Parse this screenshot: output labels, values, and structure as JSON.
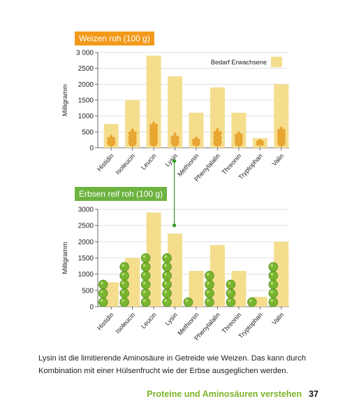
{
  "chart_data": [
    {
      "type": "bar",
      "title": "Weizen roh (100 g)",
      "ylabel": "Milligramm",
      "ylim": [
        0,
        3000
      ],
      "yticks": [
        "0",
        "500",
        "1000",
        "1500",
        "2000",
        "2500",
        "3 000"
      ],
      "categories": [
        "Histidin",
        "Isoleucin",
        "Leucin",
        "Lysin",
        "Methionin",
        "Phenylalalin",
        "Threonin",
        "Tryptophan",
        "Valin"
      ],
      "series": [
        {
          "name": "Bedarf Erwachsene",
          "values": [
            750,
            1500,
            2900,
            2250,
            1100,
            1900,
            1100,
            300,
            2000
          ]
        },
        {
          "values": [
            300,
            500,
            720,
            370,
            240,
            520,
            410,
            140,
            560
          ]
        }
      ],
      "legend": "top-right",
      "grid": true
    },
    {
      "type": "bar",
      "title": "Erbsen reif roh (100 g)",
      "ylabel": "Milligramm",
      "ylim": [
        0,
        3000
      ],
      "yticks": [
        "0",
        "500",
        "1000",
        "1500",
        "2000",
        "2500",
        "3000"
      ],
      "categories": [
        "Histidin",
        "Isoleucin",
        "Leucin",
        "Lysin",
        "Methionin",
        "Phenylalalin",
        "Threonin",
        "Tryptophan",
        "Valin"
      ],
      "series": [
        {
          "name": "Bedarf Erwachsene",
          "values": [
            750,
            1500,
            2900,
            2250,
            1100,
            1900,
            1100,
            300,
            2000
          ]
        },
        {
          "values": [
            700,
            1250,
            1750,
            1600,
            200,
            1200,
            900,
            200,
            1300
          ]
        }
      ],
      "grid": true
    }
  ],
  "colors": {
    "bar": "#f5dd8e",
    "wheat": "#e8a531",
    "pea": "#79b52f",
    "pea_dark": "#4e8a1e",
    "wheat_tag": "#f39a1b",
    "pea_tag": "#6db33f",
    "connector": "#3a9a2a"
  },
  "text": {
    "caption": "Lysin ist die limitierende Aminosäure in Getreide wie Weizen. Das kann durch Kombination mit einer Hülsenfrucht wie der Erbse ausgeglichen werden.",
    "footer_title": "Proteine und Aminosäuren verstehen",
    "page_number": "37"
  }
}
